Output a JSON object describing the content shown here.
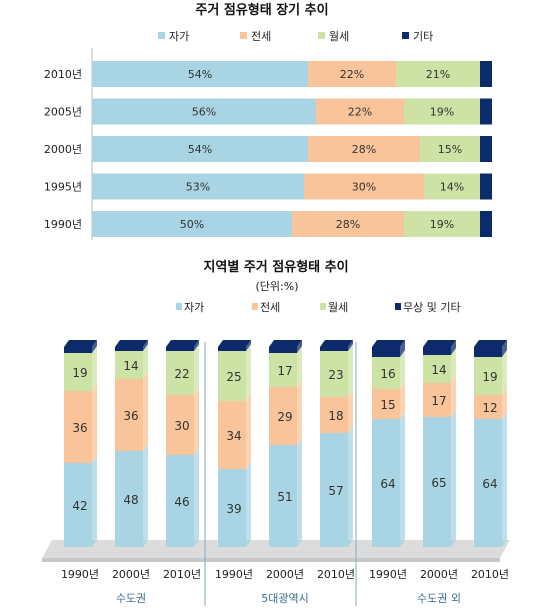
{
  "colors": {
    "self": "#a8d4e3",
    "jeonse": "#f9c49a",
    "wolse": "#cde3a5",
    "other": "#0d2a6b",
    "group_text": "#3a6d8c"
  },
  "chart_data": [
    {
      "type": "bar",
      "orientation": "horizontal",
      "stacked": "percent",
      "title": "주거 점유형태 장기 추이",
      "legend_position": "top",
      "categories": [
        "2010년",
        "2005년",
        "2000년",
        "1995년",
        "1990년"
      ],
      "series": [
        {
          "name": "자가",
          "values": [
            54,
            56,
            54,
            53,
            50
          ],
          "labels": [
            "54%",
            "56%",
            "54%",
            "53%",
            "50%"
          ]
        },
        {
          "name": "전세",
          "values": [
            22,
            22,
            28,
            30,
            28
          ],
          "labels": [
            "22%",
            "22%",
            "28%",
            "30%",
            "28%"
          ]
        },
        {
          "name": "월세",
          "values": [
            21,
            19,
            15,
            14,
            19
          ],
          "labels": [
            "21%",
            "19%",
            "15%",
            "14%",
            "19%"
          ]
        },
        {
          "name": "기타",
          "values": [
            3,
            3,
            3,
            3,
            3
          ]
        }
      ],
      "xlim": [
        0,
        100
      ]
    },
    {
      "type": "bar",
      "orientation": "vertical",
      "stacked": "percent",
      "title": "지역별 주거 점유형태 추이",
      "subtitle": "(단위:%)",
      "legend_position": "top",
      "groups": [
        {
          "name": "수도권",
          "categories": [
            "1990년",
            "2000년",
            "2010년"
          ]
        },
        {
          "name": "5대광역시",
          "categories": [
            "1990년",
            "2000년",
            "2010년"
          ]
        },
        {
          "name": "수도권 외",
          "categories": [
            "1990년",
            "2000년",
            "2010년"
          ]
        }
      ],
      "series": [
        {
          "name": "자가",
          "values": [
            42,
            48,
            46,
            39,
            51,
            57,
            64,
            65,
            64
          ]
        },
        {
          "name": "전세",
          "values": [
            36,
            36,
            30,
            34,
            29,
            18,
            15,
            17,
            12
          ]
        },
        {
          "name": "월세",
          "values": [
            19,
            14,
            22,
            25,
            17,
            23,
            16,
            14,
            19
          ]
        },
        {
          "name": "무상 및 기타",
          "values": [
            3,
            2,
            2,
            2,
            3,
            2,
            5,
            4,
            5
          ]
        }
      ],
      "ylim": [
        0,
        100
      ]
    }
  ]
}
